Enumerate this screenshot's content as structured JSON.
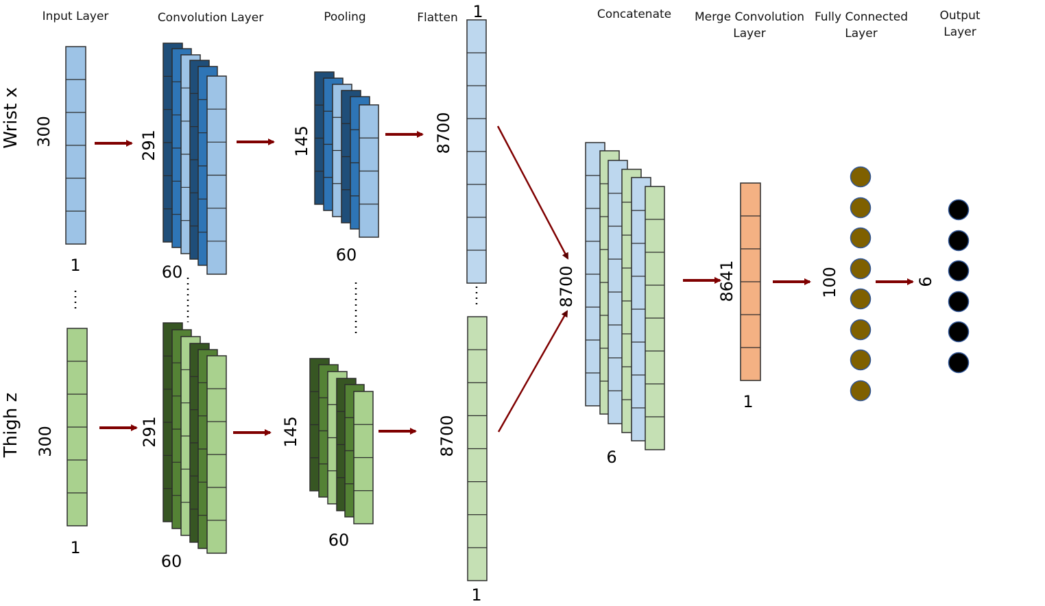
{
  "headers": {
    "input": "Input Layer",
    "conv": "Convolution Layer",
    "pool": "Pooling",
    "flatten": "Flatten",
    "concat": "Concatenate",
    "merge_line1": "Merge Convolution",
    "merge_line2": "Layer",
    "fc_line1": "Fully Connected",
    "fc_line2": "Layer",
    "out_line1": "Output",
    "out_line2": "Layer"
  },
  "inputs": {
    "wrist": "Wrist x",
    "thigh": "Thigh z"
  },
  "dims": {
    "input_len": "300",
    "input_width": "1",
    "conv_len": "291",
    "conv_filters": "60",
    "pool_len": "145",
    "pool_filters": "60",
    "flatten_len": "8700",
    "flatten_width": "1",
    "concat_len": "8700",
    "concat_depth": "6",
    "merge_len": "8641",
    "merge_width": "1",
    "fc_units": "100",
    "output_units": "6"
  },
  "ellipsis": {
    "vertical": "⋮",
    "dotted": "......"
  },
  "colors": {
    "blue_light": "#9dc3e6",
    "blue_mid": "#2e75b6",
    "blue_dark": "#1f4e79",
    "blue_pale": "#bdd7ee",
    "green_light": "#a9d18e",
    "green_mid": "#548235",
    "green_dark": "#375623",
    "green_pale": "#c5e0b4",
    "orange": "#f4b183",
    "fc_node": "#7f6000",
    "output_node": "#000000",
    "arrow": "#7f0000"
  }
}
